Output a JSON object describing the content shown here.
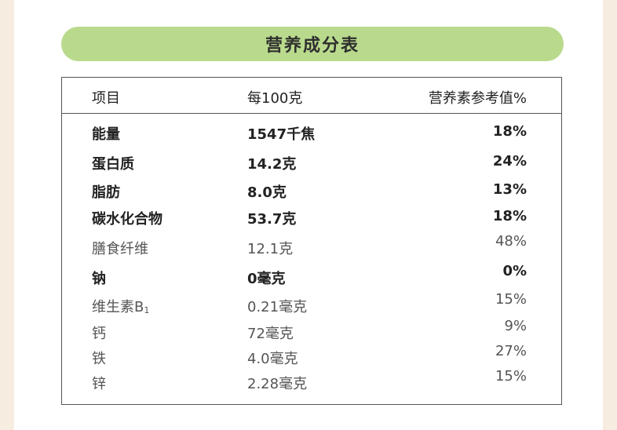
{
  "title": "营养成分表",
  "table": {
    "headers": [
      "项目",
      "每100克",
      "营养素参考值%"
    ],
    "rows": [
      {
        "item": "能量",
        "amount": "1547千焦",
        "nrv": "18%",
        "bold": true
      },
      {
        "item": "蛋白质",
        "amount": "14.2克",
        "nrv": "24%",
        "bold": true
      },
      {
        "item": "脂肪",
        "amount": "8.0克",
        "nrv": "13%",
        "bold": true
      },
      {
        "item": "碳水化合物",
        "amount": "53.7克",
        "nrv": "18%",
        "bold": true
      },
      {
        "item": "膳食纤维",
        "amount": "12.1克",
        "nrv": "48%",
        "bold": false
      },
      {
        "item": "钠",
        "amount": "0毫克",
        "nrv": "0%",
        "bold": true
      },
      {
        "item": "维生素B",
        "item_sub": "1",
        "amount": "0.21毫克",
        "nrv": "15%",
        "bold": false
      },
      {
        "item": "钙",
        "amount": "72毫克",
        "nrv": "9%",
        "bold": false
      },
      {
        "item": "铁",
        "amount": "4.0毫克",
        "nrv": "27%",
        "bold": false
      },
      {
        "item": "锌",
        "amount": "2.28毫克",
        "nrv": "15%",
        "bold": false
      }
    ]
  },
  "colors": {
    "title_bg": "#b9da8c",
    "page_bg": "#f6ede0",
    "border": "#555555"
  }
}
